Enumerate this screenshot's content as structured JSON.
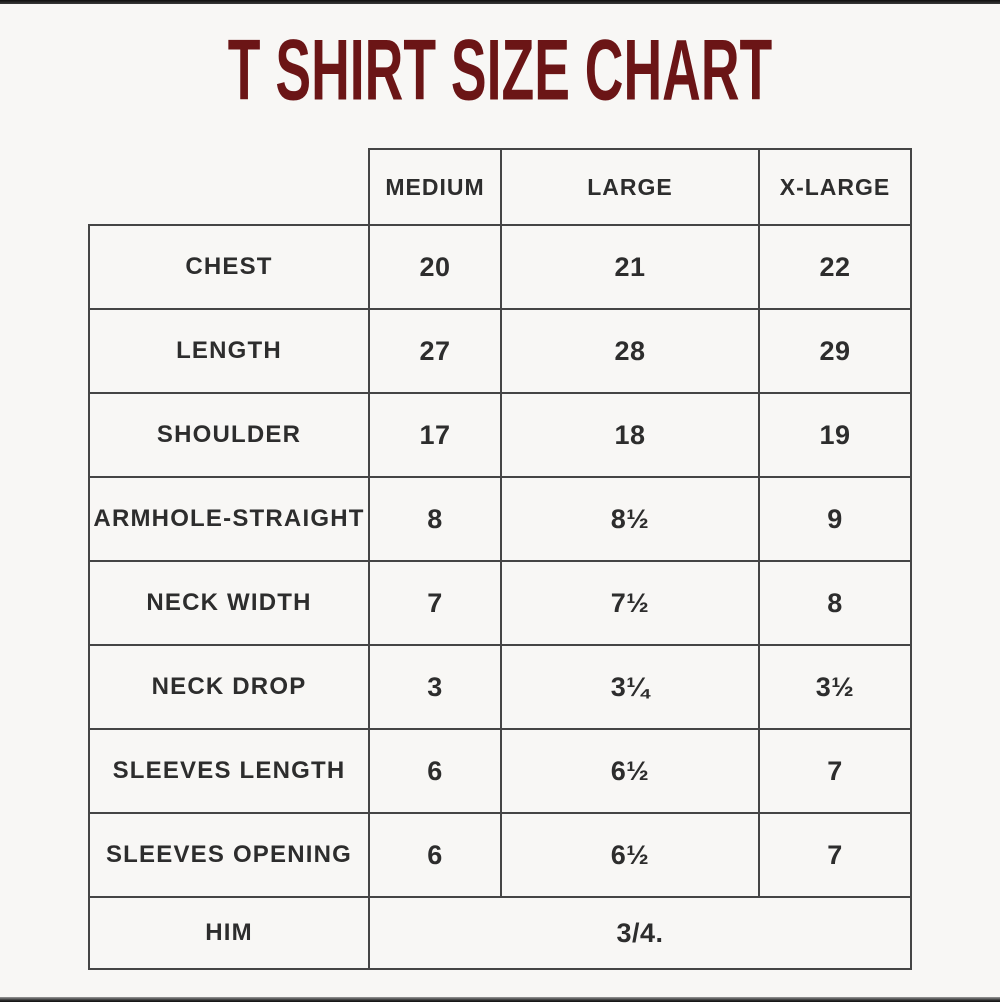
{
  "page": {
    "title": "T SHIRT SIZE CHART"
  },
  "colors": {
    "background": "#f8f7f5",
    "border": "#454545",
    "text": "#2d2d2d",
    "title": "#6b1516",
    "edge": "#1b1b1b"
  },
  "table": {
    "columns": [
      "MEDIUM",
      "LARGE",
      "X-LARGE"
    ],
    "rows": [
      {
        "label": "CHEST",
        "values": [
          "20",
          "21",
          "22"
        ]
      },
      {
        "label": "LENGTH",
        "values": [
          "27",
          "28",
          "29"
        ]
      },
      {
        "label": "SHOULDER",
        "values": [
          "17",
          "18",
          "19"
        ]
      },
      {
        "label": "ARMHOLE-STRAIGHT",
        "values": [
          "8",
          "8½",
          "9"
        ]
      },
      {
        "label": "NECK WIDTH",
        "values": [
          "7",
          "7½",
          "8"
        ]
      },
      {
        "label": "NECK DROP",
        "values": [
          "3",
          "3¼",
          "3½"
        ]
      },
      {
        "label": "SLEEVES LENGTH",
        "values": [
          "6",
          "6½",
          "7"
        ]
      },
      {
        "label": "SLEEVES OPENING",
        "values": [
          "6",
          "6½",
          "7"
        ]
      }
    ],
    "footer_row": {
      "label": "HIM",
      "merged_value": "3/4."
    }
  },
  "chart_data": {
    "type": "table",
    "title": "T SHIRT SIZE CHART",
    "columns": [
      "",
      "MEDIUM",
      "LARGE",
      "X-LARGE"
    ],
    "rows": [
      [
        "CHEST",
        "20",
        "21",
        "22"
      ],
      [
        "LENGTH",
        "27",
        "28",
        "29"
      ],
      [
        "SHOULDER",
        "17",
        "18",
        "19"
      ],
      [
        "ARMHOLE-STRAIGHT",
        "8",
        "8½",
        "9"
      ],
      [
        "NECK WIDTH",
        "7",
        "7½",
        "8"
      ],
      [
        "NECK DROP",
        "3",
        "3¼",
        "3½"
      ],
      [
        "SLEEVES LENGTH",
        "6",
        "6½",
        "7"
      ],
      [
        "SLEEVES OPENING",
        "6",
        "6½",
        "7"
      ],
      [
        "HIM",
        "3/4.",
        "3/4.",
        "3/4."
      ]
    ],
    "notes": "HIM row value 3/4. spans the MEDIUM, LARGE and X-LARGE columns as one merged cell"
  }
}
